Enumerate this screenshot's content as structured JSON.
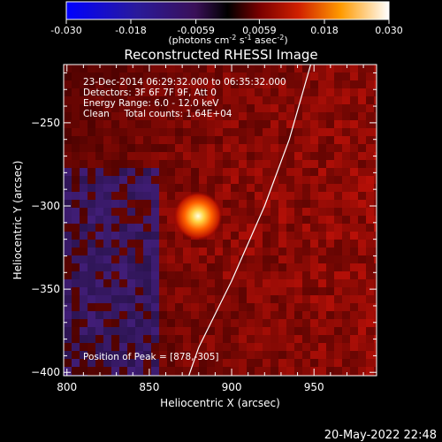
{
  "colorbar": {
    "ticks": [
      "-0.030",
      "-0.018",
      "-0.0059",
      "0.0059",
      "0.018",
      "0.030"
    ],
    "tick_values": [
      -0.03,
      -0.018,
      -0.0059,
      0.0059,
      0.018,
      0.03
    ],
    "range": [
      -0.03,
      0.03
    ],
    "unit_main": "(photons cm",
    "unit_exp1": "-2",
    "unit_mid1": " s",
    "unit_exp2": "-1",
    "unit_mid2": " asec",
    "unit_exp3": "-2",
    "unit_end": ")"
  },
  "chart_data": {
    "type": "heatmap",
    "title": "Reconstructed RHESSI Image",
    "xlabel": "Heliocentric X (arcsec)",
    "ylabel": "Heliocentric Y (arcsec)",
    "xlim": [
      798,
      988
    ],
    "ylim": [
      -402,
      -215
    ],
    "xticks": [
      800,
      850,
      900,
      950
    ],
    "yticks": [
      -250,
      -300,
      -350,
      -400
    ],
    "xtick_labels": [
      "800",
      "850",
      "900",
      "950"
    ],
    "ytick_labels": [
      "−250",
      "−300",
      "−350",
      "−400"
    ],
    "peak": [
      878,
      -305
    ],
    "colormap": [
      "#0000ff",
      "#3c1470",
      "#000000",
      "#a00000",
      "#ff7800",
      "#ffffff"
    ],
    "limb_curve": [
      [
        948,
        -215
      ],
      [
        935,
        -260
      ],
      [
        920,
        -300
      ],
      [
        900,
        -345
      ],
      [
        880,
        -385
      ],
      [
        874,
        -402
      ]
    ],
    "annotations": [
      "23-Dec-2014 06:29:32.000 to 06:35:32.000",
      "Detectors: 3F 6F 7F 9F, Att 0",
      "Energy Range: 6.0 - 12.0 keV",
      "Clean     Total counts: 1.64E+04",
      "Position of Peak = [878,-305]"
    ]
  },
  "timestamp": "20-May-2022 22:48"
}
